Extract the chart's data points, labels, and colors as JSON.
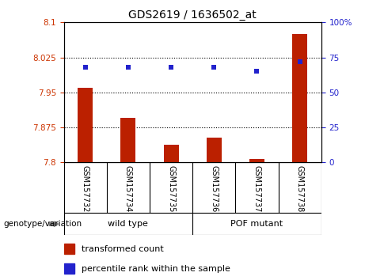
{
  "title": "GDS2619 / 1636502_at",
  "samples": [
    "GSM157732",
    "GSM157734",
    "GSM157735",
    "GSM157736",
    "GSM157737",
    "GSM157738"
  ],
  "bar_values": [
    7.96,
    7.895,
    7.838,
    7.853,
    7.808,
    8.075
  ],
  "percentile_values": [
    68,
    68,
    68,
    68,
    65,
    72
  ],
  "ylim_left": [
    7.8,
    8.1
  ],
  "ylim_right": [
    0,
    100
  ],
  "yticks_left": [
    7.8,
    7.875,
    7.95,
    8.025,
    8.1
  ],
  "ytick_labels_left": [
    "7.8",
    "7.875",
    "7.95",
    "8.025",
    "8.1"
  ],
  "yticks_right": [
    0,
    25,
    50,
    75,
    100
  ],
  "ytick_labels_right": [
    "0",
    "25",
    "50",
    "75",
    "100%"
  ],
  "hlines": [
    7.875,
    7.95,
    8.025
  ],
  "bar_color": "#BB2000",
  "dot_color": "#2222CC",
  "bar_baseline": 7.8,
  "group_label": "genotype/variation",
  "wild_type_label": "wild type",
  "pof_label": "POF mutant",
  "legend_bar_label": "transformed count",
  "legend_dot_label": "percentile rank within the sample",
  "tick_color_left": "#CC3300",
  "tick_color_right": "#2222CC",
  "background_color": "#FFFFFF",
  "sample_label_bg": "#C8C8C8",
  "group_bg_color": "#88EE88"
}
